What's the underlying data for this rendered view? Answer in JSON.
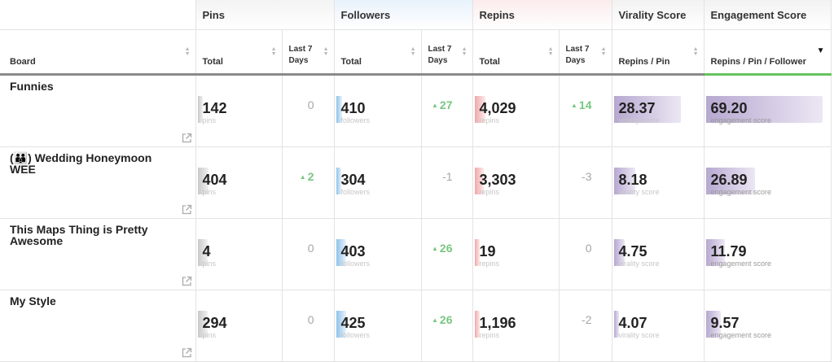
{
  "headers": {
    "board": "Board",
    "groups": {
      "pins": "Pins",
      "followers": "Followers",
      "repins": "Repins",
      "virality": "Virality Score",
      "engagement": "Engagement Score"
    },
    "sub": {
      "total": "Total",
      "last7": "Last 7 Days",
      "repins_per_pin": "Repins / Pin",
      "repins_per_pin_per_follower": "Repins / Pin / Follower"
    }
  },
  "captions": {
    "pins": "pins",
    "followers": "followers",
    "repins": "repins",
    "virality": "virality score",
    "engagement": "engagement score"
  },
  "colors": {
    "pins": "#c9c9c9",
    "followers": "#8fc3ea",
    "repins": "#f0a8a8",
    "scores": "#b7a8d0",
    "positive_delta": "#79c680",
    "sorted_underline": "#66c45e"
  },
  "rows": [
    {
      "board": "Funnies",
      "group_icon": "",
      "pins": {
        "total": "142",
        "last7": "0",
        "last7_up": false,
        "fill": 0.05
      },
      "followers": {
        "total": "410",
        "last7": "27",
        "last7_up": true,
        "fill": 0.07
      },
      "repins": {
        "total": "4,029",
        "last7": "14",
        "last7_up": true,
        "fill": 0.13
      },
      "virality": {
        "value": "28.37",
        "fill": 0.77
      },
      "engagement": {
        "value": "69.20",
        "fill": 0.95
      }
    },
    {
      "board": "Wedding Honeymoon WEE",
      "group_icon": "(👪)",
      "pins": {
        "total": "404",
        "last7": "2",
        "last7_up": true,
        "fill": 0.13
      },
      "followers": {
        "total": "304",
        "last7": "-1",
        "last7_up": false,
        "fill": 0.05
      },
      "repins": {
        "total": "3,303",
        "last7": "-3",
        "last7_up": false,
        "fill": 0.11
      },
      "virality": {
        "value": "8.18",
        "fill": 0.24
      },
      "engagement": {
        "value": "26.89",
        "fill": 0.4
      }
    },
    {
      "board": "This Maps Thing is Pretty Awesome",
      "group_icon": "",
      "pins": {
        "total": "4",
        "last7": "0",
        "last7_up": false,
        "fill": 0.12
      },
      "followers": {
        "total": "403",
        "last7": "26",
        "last7_up": true,
        "fill": 0.12
      },
      "repins": {
        "total": "19",
        "last7": "0",
        "last7_up": false,
        "fill": 0.03
      },
      "virality": {
        "value": "4.75",
        "fill": 0.12
      },
      "engagement": {
        "value": "11.79",
        "fill": 0.15
      }
    },
    {
      "board": "My Style",
      "group_icon": "",
      "pins": {
        "total": "294",
        "last7": "0",
        "last7_up": false,
        "fill": 0.12
      },
      "followers": {
        "total": "425",
        "last7": "26",
        "last7_up": true,
        "fill": 0.12
      },
      "repins": {
        "total": "1,196",
        "last7": "-2",
        "last7_up": false,
        "fill": 0.06
      },
      "virality": {
        "value": "4.07",
        "fill": 0.06
      },
      "engagement": {
        "value": "9.57",
        "fill": 0.12
      }
    }
  ]
}
